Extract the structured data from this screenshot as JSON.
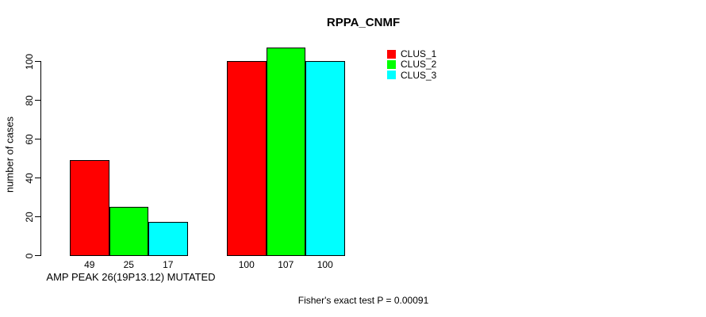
{
  "chart_data": {
    "type": "bar",
    "title": "RPPA_CNMF",
    "ylabel": "number of cases",
    "xlabel": "",
    "yticks": [
      0,
      20,
      40,
      60,
      80,
      100
    ],
    "ylim": [
      0,
      110
    ],
    "grid": false,
    "legend_position": "top-right",
    "show_bar_values": true,
    "categories": [
      "AMP PEAK 26(19P13.12) MUTATED",
      ""
    ],
    "series": [
      {
        "name": "CLUS_1",
        "color": "#ff0000",
        "values": [
          49,
          100
        ]
      },
      {
        "name": "CLUS_2",
        "color": "#00ff00",
        "values": [
          25,
          107
        ]
      },
      {
        "name": "CLUS_3",
        "color": "#00ffff",
        "values": [
          17,
          100
        ]
      }
    ],
    "annotation": "Fisher's exact test P = 0.00091"
  },
  "colors": {
    "background": "#ffffff",
    "axis": "#000000",
    "text": "#000000"
  }
}
